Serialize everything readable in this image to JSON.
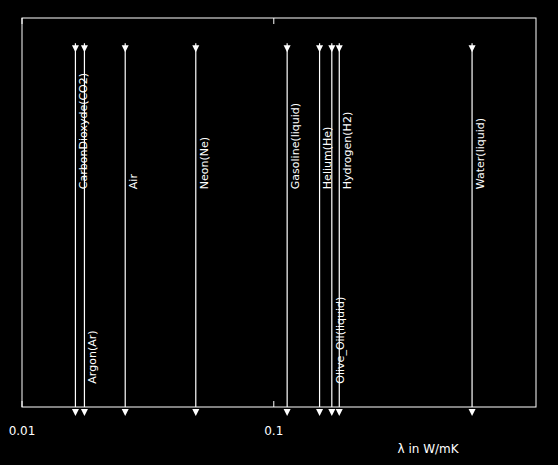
{
  "chart_data": {
    "type": "rug",
    "categories": [
      "CarbonDioxyde(CO2)",
      "Argon(Ar)",
      "Air",
      "Neon(Ne)",
      "Gasoline(liquid)",
      "Helium(He)",
      "Olive_Oil(liquid)",
      "Hydrogen(H2)",
      "Water(liquid)"
    ],
    "values": [
      0.0163,
      0.0177,
      0.0257,
      0.049,
      0.113,
      0.152,
      0.17,
      0.182,
      0.613
    ],
    "x_label": "λ in W/mK",
    "xlim": [
      0.01,
      1.1
    ],
    "xticks": [
      0.01,
      0.1
    ],
    "log": "x",
    "tick_labels": "x",
    "grid": false,
    "color": "#ffffff"
  }
}
